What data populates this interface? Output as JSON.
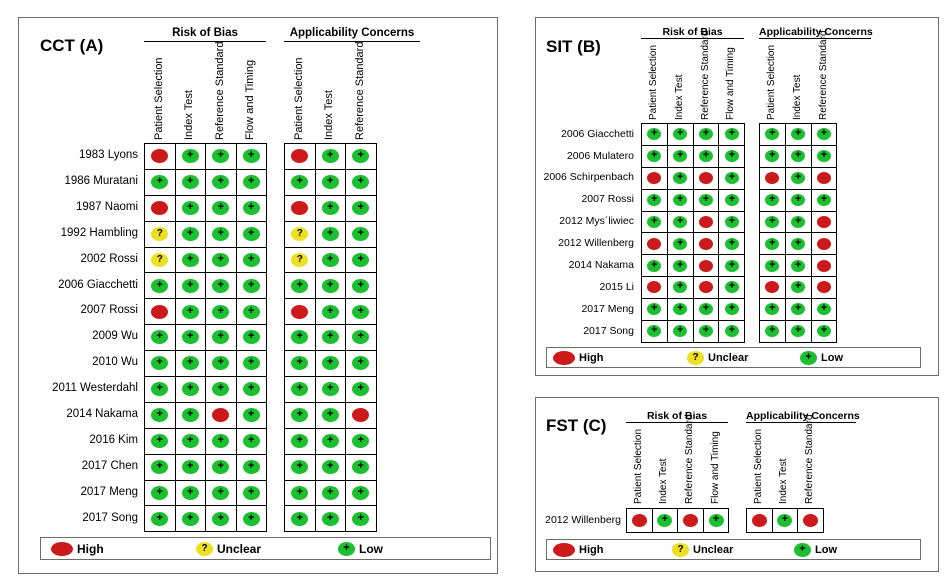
{
  "panels": [
    {
      "id": "cct",
      "title": "CCT (A)",
      "group_headers": [
        "Risk of Bias",
        "Applicability Concerns"
      ],
      "columns_rob": [
        "Patient Selection",
        "Index Test",
        "Reference Standard",
        "Flow and Timing"
      ],
      "columns_app": [
        "Patient Selection",
        "Index Test",
        "Reference Standard"
      ],
      "rows": [
        {
          "study": "1983 Lyons",
          "rob": [
            "high",
            "low",
            "low",
            "low"
          ],
          "app": [
            "high",
            "low",
            "low"
          ]
        },
        {
          "study": "1986 Muratani",
          "rob": [
            "low",
            "low",
            "low",
            "low"
          ],
          "app": [
            "low",
            "low",
            "low"
          ]
        },
        {
          "study": "1987 Naomi",
          "rob": [
            "high",
            "low",
            "low",
            "low"
          ],
          "app": [
            "high",
            "low",
            "low"
          ]
        },
        {
          "study": "1992 Hambling",
          "rob": [
            "unclear",
            "low",
            "low",
            "low"
          ],
          "app": [
            "unclear",
            "low",
            "low"
          ]
        },
        {
          "study": "2002 Rossi",
          "rob": [
            "unclear",
            "low",
            "low",
            "low"
          ],
          "app": [
            "unclear",
            "low",
            "low"
          ]
        },
        {
          "study": "2006 Giacchetti",
          "rob": [
            "low",
            "low",
            "low",
            "low"
          ],
          "app": [
            "low",
            "low",
            "low"
          ]
        },
        {
          "study": "2007 Rossi",
          "rob": [
            "high",
            "low",
            "low",
            "low"
          ],
          "app": [
            "high",
            "low",
            "low"
          ]
        },
        {
          "study": "2009 Wu",
          "rob": [
            "low",
            "low",
            "low",
            "low"
          ],
          "app": [
            "low",
            "low",
            "low"
          ]
        },
        {
          "study": "2010 Wu",
          "rob": [
            "low",
            "low",
            "low",
            "low"
          ],
          "app": [
            "low",
            "low",
            "low"
          ]
        },
        {
          "study": "2011 Westerdahl",
          "rob": [
            "low",
            "low",
            "low",
            "low"
          ],
          "app": [
            "low",
            "low",
            "low"
          ]
        },
        {
          "study": "2014 Nakama",
          "rob": [
            "low",
            "low",
            "high",
            "low"
          ],
          "app": [
            "low",
            "low",
            "high"
          ]
        },
        {
          "study": "2016 Kim",
          "rob": [
            "low",
            "low",
            "low",
            "low"
          ],
          "app": [
            "low",
            "low",
            "low"
          ]
        },
        {
          "study": "2017 Chen",
          "rob": [
            "low",
            "low",
            "low",
            "low"
          ],
          "app": [
            "low",
            "low",
            "low"
          ]
        },
        {
          "study": "2017 Meng",
          "rob": [
            "low",
            "low",
            "low",
            "low"
          ],
          "app": [
            "low",
            "low",
            "low"
          ]
        },
        {
          "study": "2017 Song",
          "rob": [
            "low",
            "low",
            "low",
            "low"
          ],
          "app": [
            "low",
            "low",
            "low"
          ]
        }
      ],
      "legend": {
        "high": "High",
        "unclear": "Unclear",
        "low": "Low"
      }
    },
    {
      "id": "sit",
      "title": "SIT (B)",
      "group_headers": [
        "Risk of Bias",
        "Applicability Concerns"
      ],
      "columns_rob": [
        "Patient Selection",
        "Index Test",
        "Reference Standard",
        "Flow and Timing"
      ],
      "columns_app": [
        "Patient Selection",
        "Index Test",
        "Reference Standard"
      ],
      "rows": [
        {
          "study": "2006 Giacchetti",
          "rob": [
            "low",
            "low",
            "low",
            "low"
          ],
          "app": [
            "low",
            "low",
            "low"
          ]
        },
        {
          "study": "2006 Mulatero",
          "rob": [
            "low",
            "low",
            "low",
            "low"
          ],
          "app": [
            "low",
            "low",
            "low"
          ]
        },
        {
          "study": "2006 Schirpenbach",
          "rob": [
            "high",
            "low",
            "high",
            "low"
          ],
          "app": [
            "high",
            "low",
            "high"
          ]
        },
        {
          "study": "2007 Rossi",
          "rob": [
            "low",
            "low",
            "low",
            "low"
          ],
          "app": [
            "low",
            "low",
            "low"
          ]
        },
        {
          "study": "2012 Mys´liwiec",
          "rob": [
            "low",
            "low",
            "high",
            "low"
          ],
          "app": [
            "low",
            "low",
            "high"
          ]
        },
        {
          "study": "2012 Willenberg",
          "rob": [
            "high",
            "low",
            "high",
            "low"
          ],
          "app": [
            "low",
            "low",
            "high"
          ]
        },
        {
          "study": "2014 Nakama",
          "rob": [
            "low",
            "low",
            "high",
            "low"
          ],
          "app": [
            "low",
            "low",
            "high"
          ]
        },
        {
          "study": "2015 Li",
          "rob": [
            "high",
            "low",
            "high",
            "low"
          ],
          "app": [
            "high",
            "low",
            "high"
          ]
        },
        {
          "study": "2017 Meng",
          "rob": [
            "low",
            "low",
            "low",
            "low"
          ],
          "app": [
            "low",
            "low",
            "low"
          ]
        },
        {
          "study": "2017 Song",
          "rob": [
            "low",
            "low",
            "low",
            "low"
          ],
          "app": [
            "low",
            "low",
            "low"
          ]
        }
      ],
      "legend": {
        "high": "High",
        "unclear": "Unclear",
        "low": "Low"
      }
    },
    {
      "id": "fst",
      "title": "FST (C)",
      "group_headers": [
        "Risk of Bias",
        "Applicability Concerns"
      ],
      "columns_rob": [
        "Patient Selection",
        "Index Test",
        "Reference Standard",
        "Flow and Timing"
      ],
      "columns_app": [
        "Patient Selection",
        "Index Test",
        "Reference Standard"
      ],
      "rows": [
        {
          "study": "2012 Willenberg",
          "rob": [
            "high",
            "low",
            "high",
            "low"
          ],
          "app": [
            "high",
            "low",
            "high"
          ]
        }
      ],
      "legend": {
        "high": "High",
        "unclear": "Unclear",
        "low": "Low"
      }
    }
  ],
  "colors": {
    "high": "#cc1a1a",
    "unclear": "#ece020",
    "low": "#1cbf2f"
  }
}
